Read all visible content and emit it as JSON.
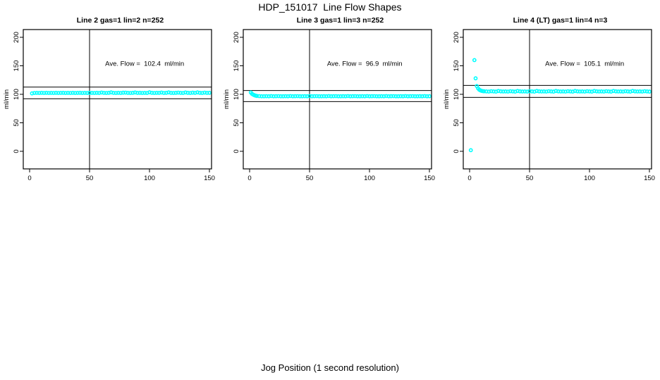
{
  "page": {
    "title": "HDP_151017  Line Flow Shapes",
    "xlabel": "Jog Position (1 second resolution)",
    "background": "#ffffff"
  },
  "colors": {
    "marker": "#00ffff",
    "axis": "#000000",
    "text": "#000000"
  },
  "chart_data": [
    {
      "type": "scatter",
      "title": "Line 2 gas=1 lin=2 n=252",
      "annotation": "Ave. Flow =  102.4  ml/min",
      "annotation_x": 96,
      "annotation_y": 150,
      "avg_flow": 102.4,
      "n": 252,
      "ylabel": "ml/min",
      "x_ticks": [
        0,
        50,
        100,
        150
      ],
      "y_ticks": [
        0,
        50,
        100,
        150,
        200
      ],
      "xlim": [
        -6,
        156
      ],
      "ylim": [
        -31,
        214
      ],
      "grid": false,
      "ref_upper": 112.6,
      "ref_lower": 92.2,
      "ref_vertical_x": 50,
      "marker": "open-circle",
      "marker_color": "#00ffff",
      "points": [
        [
          2,
          101.6
        ],
        [
          4,
          102.3
        ],
        [
          6,
          102.5
        ],
        [
          8,
          102.3
        ],
        [
          10,
          102.6
        ],
        [
          12,
          102.4
        ],
        [
          14,
          102.6
        ],
        [
          16,
          102.3
        ],
        [
          18,
          102.5
        ],
        [
          20,
          102.4
        ],
        [
          22,
          102.6
        ],
        [
          24,
          102.3
        ],
        [
          26,
          102.5
        ],
        [
          28,
          102.6
        ],
        [
          30,
          102.4
        ],
        [
          32,
          102.5
        ],
        [
          34,
          102.3
        ],
        [
          36,
          102.6
        ],
        [
          38,
          102.4
        ],
        [
          40,
          102.5
        ],
        [
          42,
          102.6
        ],
        [
          44,
          102.3
        ],
        [
          46,
          102.5
        ],
        [
          48,
          102.4
        ],
        [
          50,
          102.6
        ],
        [
          52,
          102.5
        ],
        [
          54,
          102.3
        ],
        [
          56,
          102.6
        ],
        [
          58,
          102.4
        ],
        [
          60,
          103.1
        ],
        [
          62,
          102.5
        ],
        [
          64,
          102.3
        ],
        [
          66,
          102.6
        ],
        [
          68,
          103.3
        ],
        [
          70,
          102.5
        ],
        [
          72,
          102.4
        ],
        [
          74,
          102.6
        ],
        [
          76,
          102.3
        ],
        [
          78,
          102.8
        ],
        [
          80,
          103.0
        ],
        [
          82,
          102.5
        ],
        [
          84,
          102.4
        ],
        [
          86,
          102.6
        ],
        [
          88,
          103.2
        ],
        [
          90,
          102.5
        ],
        [
          92,
          102.6
        ],
        [
          94,
          102.4
        ],
        [
          96,
          102.5
        ],
        [
          98,
          102.3
        ],
        [
          100,
          103.4
        ],
        [
          102,
          102.6
        ],
        [
          104,
          102.4
        ],
        [
          106,
          102.6
        ],
        [
          108,
          102.5
        ],
        [
          110,
          103.1
        ],
        [
          112,
          102.4
        ],
        [
          114,
          102.6
        ],
        [
          116,
          103.3
        ],
        [
          118,
          102.5
        ],
        [
          120,
          102.3
        ],
        [
          122,
          102.6
        ],
        [
          124,
          103.0
        ],
        [
          126,
          102.5
        ],
        [
          128,
          102.4
        ],
        [
          130,
          103.2
        ],
        [
          132,
          102.6
        ],
        [
          134,
          102.4
        ],
        [
          136,
          102.9
        ],
        [
          138,
          102.5
        ],
        [
          140,
          103.3
        ],
        [
          142,
          102.6
        ],
        [
          144,
          102.3
        ],
        [
          146,
          103.0
        ],
        [
          148,
          102.5
        ],
        [
          150,
          102.6
        ]
      ]
    },
    {
      "type": "scatter",
      "title": "Line 3 gas=1 lin=3 n=252",
      "annotation": "Ave. Flow =  96.9  ml/min",
      "annotation_x": 96,
      "annotation_y": 150,
      "avg_flow": 96.9,
      "n": 252,
      "ylabel": "ml/min",
      "x_ticks": [
        0,
        50,
        100,
        150
      ],
      "y_ticks": [
        0,
        50,
        100,
        150,
        200
      ],
      "xlim": [
        -6,
        156
      ],
      "ylim": [
        -31,
        214
      ],
      "grid": false,
      "ref_upper": 106.6,
      "ref_lower": 87.2,
      "ref_vertical_x": 50,
      "marker": "open-circle",
      "marker_color": "#00ffff",
      "points": [
        [
          1,
          103.2
        ],
        [
          2,
          100.8
        ],
        [
          3,
          99.4
        ],
        [
          4,
          98.4
        ],
        [
          5,
          97.7
        ],
        [
          6,
          97.2
        ],
        [
          8,
          96.8
        ],
        [
          10,
          96.6
        ],
        [
          12,
          96.5
        ],
        [
          14,
          96.7
        ],
        [
          16,
          96.6
        ],
        [
          18,
          96.9
        ],
        [
          20,
          96.5
        ],
        [
          22,
          96.7
        ],
        [
          24,
          96.8
        ],
        [
          26,
          96.6
        ],
        [
          28,
          96.5
        ],
        [
          30,
          96.7
        ],
        [
          32,
          96.6
        ],
        [
          34,
          96.9
        ],
        [
          36,
          96.5
        ],
        [
          38,
          96.7
        ],
        [
          40,
          96.8
        ],
        [
          42,
          96.6
        ],
        [
          44,
          96.5
        ],
        [
          46,
          96.7
        ],
        [
          48,
          96.6
        ],
        [
          50,
          96.9
        ],
        [
          52,
          96.5
        ],
        [
          54,
          96.7
        ],
        [
          56,
          96.8
        ],
        [
          58,
          96.6
        ],
        [
          60,
          96.5
        ],
        [
          62,
          96.7
        ],
        [
          64,
          96.6
        ],
        [
          66,
          96.9
        ],
        [
          68,
          96.5
        ],
        [
          70,
          96.7
        ],
        [
          72,
          96.8
        ],
        [
          74,
          96.6
        ],
        [
          76,
          96.5
        ],
        [
          78,
          96.7
        ],
        [
          80,
          96.6
        ],
        [
          82,
          96.9
        ],
        [
          84,
          96.5
        ],
        [
          86,
          96.7
        ],
        [
          88,
          96.8
        ],
        [
          90,
          96.6
        ],
        [
          92,
          96.5
        ],
        [
          94,
          96.7
        ],
        [
          96,
          96.6
        ],
        [
          98,
          96.9
        ],
        [
          100,
          96.5
        ],
        [
          102,
          96.7
        ],
        [
          104,
          96.8
        ],
        [
          106,
          96.6
        ],
        [
          108,
          96.5
        ],
        [
          110,
          96.7
        ],
        [
          112,
          96.6
        ],
        [
          114,
          96.9
        ],
        [
          116,
          96.5
        ],
        [
          118,
          96.7
        ],
        [
          120,
          96.8
        ],
        [
          122,
          96.6
        ],
        [
          124,
          96.5
        ],
        [
          126,
          96.7
        ],
        [
          128,
          96.6
        ],
        [
          130,
          96.9
        ],
        [
          132,
          96.5
        ],
        [
          134,
          96.7
        ],
        [
          136,
          96.8
        ],
        [
          138,
          96.6
        ],
        [
          140,
          96.5
        ],
        [
          142,
          96.7
        ],
        [
          144,
          96.6
        ],
        [
          146,
          96.9
        ],
        [
          148,
          96.5
        ],
        [
          150,
          96.7
        ]
      ]
    },
    {
      "type": "scatter",
      "title": "Line 4 (LT) gas=1 lin=4 n=3",
      "annotation": "Ave. Flow =  105.1  ml/min",
      "annotation_x": 96,
      "annotation_y": 150,
      "avg_flow": 105.1,
      "n": 3,
      "ylabel": "ml/min",
      "x_ticks": [
        0,
        50,
        100,
        150
      ],
      "y_ticks": [
        0,
        50,
        100,
        150,
        200
      ],
      "xlim": [
        -6,
        156
      ],
      "ylim": [
        -31,
        214
      ],
      "grid": false,
      "ref_upper": 115.6,
      "ref_lower": 94.6,
      "ref_vertical_x": 50,
      "marker": "open-circle",
      "marker_color": "#00ffff",
      "points": [
        [
          1,
          2
        ],
        [
          4,
          160
        ],
        [
          5,
          128
        ],
        [
          6,
          114.5
        ],
        [
          7,
          110.5
        ],
        [
          8,
          108.2
        ],
        [
          9,
          106.9
        ],
        [
          10,
          106.1
        ],
        [
          11,
          105.6
        ],
        [
          12,
          105.3
        ],
        [
          14,
          105.0
        ],
        [
          16,
          104.8
        ],
        [
          18,
          105.4
        ],
        [
          20,
          105.1
        ],
        [
          22,
          104.7
        ],
        [
          24,
          105.8
        ],
        [
          26,
          105.2
        ],
        [
          28,
          104.9
        ],
        [
          30,
          105.0
        ],
        [
          32,
          104.8
        ],
        [
          34,
          105.4
        ],
        [
          36,
          105.1
        ],
        [
          38,
          104.7
        ],
        [
          40,
          105.8
        ],
        [
          42,
          105.2
        ],
        [
          44,
          104.9
        ],
        [
          46,
          105.0
        ],
        [
          48,
          104.8
        ],
        [
          50,
          105.4
        ],
        [
          52,
          105.1
        ],
        [
          54,
          104.7
        ],
        [
          56,
          105.8
        ],
        [
          58,
          105.2
        ],
        [
          60,
          104.9
        ],
        [
          62,
          105.0
        ],
        [
          64,
          104.8
        ],
        [
          66,
          105.4
        ],
        [
          68,
          105.1
        ],
        [
          70,
          104.7
        ],
        [
          72,
          105.8
        ],
        [
          74,
          105.2
        ],
        [
          76,
          104.9
        ],
        [
          78,
          105.0
        ],
        [
          80,
          104.8
        ],
        [
          82,
          105.4
        ],
        [
          84,
          105.1
        ],
        [
          86,
          104.7
        ],
        [
          88,
          105.8
        ],
        [
          90,
          105.2
        ],
        [
          92,
          104.9
        ],
        [
          94,
          105.0
        ],
        [
          96,
          104.8
        ],
        [
          98,
          105.4
        ],
        [
          100,
          105.1
        ],
        [
          102,
          104.7
        ],
        [
          104,
          105.8
        ],
        [
          106,
          105.2
        ],
        [
          108,
          104.9
        ],
        [
          110,
          105.0
        ],
        [
          112,
          104.8
        ],
        [
          114,
          105.4
        ],
        [
          116,
          105.1
        ],
        [
          118,
          104.7
        ],
        [
          120,
          105.8
        ],
        [
          122,
          105.2
        ],
        [
          124,
          104.9
        ],
        [
          126,
          105.0
        ],
        [
          128,
          104.8
        ],
        [
          130,
          105.4
        ],
        [
          132,
          105.1
        ],
        [
          134,
          104.7
        ],
        [
          136,
          105.8
        ],
        [
          138,
          105.2
        ],
        [
          140,
          104.9
        ],
        [
          142,
          105.0
        ],
        [
          144,
          104.8
        ],
        [
          146,
          105.4
        ],
        [
          148,
          105.1
        ],
        [
          150,
          104.7
        ]
      ]
    }
  ]
}
